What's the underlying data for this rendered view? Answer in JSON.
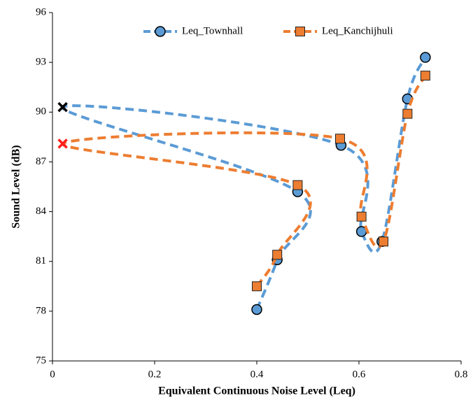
{
  "chart_data": {
    "type": "line",
    "xlabel": "Equivalent Continuous Noise Level (Leq)",
    "ylabel": "Sound Level (dB)",
    "xlim": [
      0,
      0.8
    ],
    "xticks": [
      0,
      0.2,
      0.4,
      0.6,
      0.8
    ],
    "ylim": [
      75,
      96
    ],
    "yticks": [
      75,
      78,
      81,
      84,
      87,
      90,
      93,
      96
    ],
    "grid": false,
    "smooth": true,
    "legend": "top",
    "series": [
      {
        "name": "Leq_Townhall",
        "color": "#5b9bd5",
        "marker": "circle",
        "cross_color": "#000000",
        "markers": [
          "circle",
          "circle",
          "circle",
          "cross",
          "circle",
          "circle",
          "circle",
          "circle",
          "circle"
        ],
        "x": [
          0.4,
          0.44,
          0.48,
          0.02,
          0.565,
          0.605,
          0.645,
          0.695,
          0.73
        ],
        "values": [
          78.1,
          81.1,
          85.2,
          90.3,
          88.0,
          82.8,
          82.2,
          90.8,
          93.3
        ]
      },
      {
        "name": "Leq_Kanchijhuli",
        "color": "#ed7d31",
        "marker": "square",
        "cross_color": "#ff2020",
        "markers": [
          "square",
          "square",
          "square",
          "cross",
          "square",
          "square",
          "square",
          "square",
          "square"
        ],
        "x": [
          0.4,
          0.44,
          0.48,
          0.02,
          0.563,
          0.605,
          0.648,
          0.695,
          0.73
        ],
        "values": [
          79.5,
          81.4,
          85.6,
          88.1,
          88.4,
          83.7,
          82.2,
          89.9,
          92.2
        ]
      }
    ]
  }
}
